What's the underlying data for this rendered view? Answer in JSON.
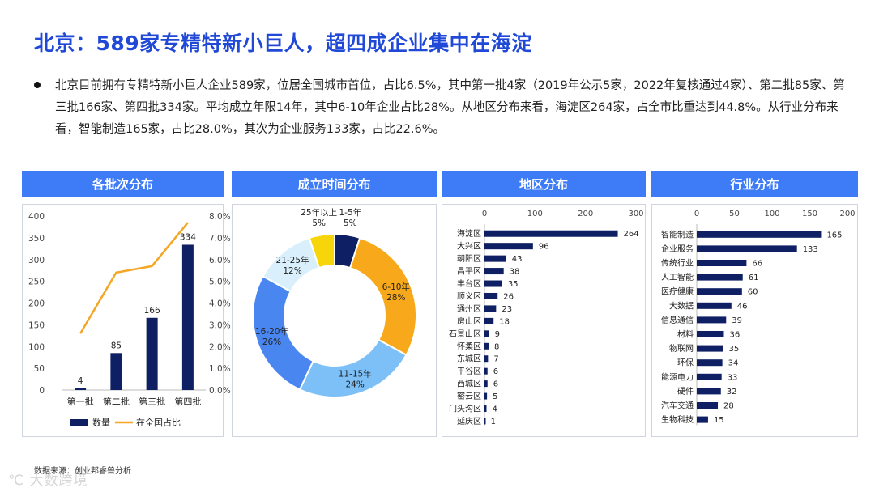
{
  "title": "北京：589家专精特新小巨人，超四成企业集中在海淀",
  "bullet": "北京目前拥有专精特新小巨人企业589家，位居全国城市首位，占比6.5%，其中第一批4家（2019年公示5家，2022年复核通过4家）、第二批85家、第三批166家、第四批334家。平均成立年限14年，其中6-10年企业占比28%。从地区分布来看，海淀区264家，占全市比重达到44.8%。从行业分布来看，智能制造165家，占比28.0%，其次为企业服务133家，占比22.6%。",
  "panels": {
    "batch": "各批次分布",
    "age": "成立时间分布",
    "region": "地区分布",
    "industry": "行业分布"
  },
  "source": "数据来源：创业邦睿兽分析",
  "watermark": "大数跨境",
  "colors": {
    "title": "#1f49d6",
    "header": "#3e7bf7",
    "navy": "#0e1f63",
    "line": "#f5a623"
  },
  "chart_data": [
    {
      "type": "bar",
      "categories": [
        "第一批",
        "第二批",
        "第三批",
        "第四批"
      ],
      "series": [
        {
          "name": "数量",
          "values": [
            4,
            85,
            166,
            334
          ]
        },
        {
          "name": "在全国占比",
          "type": "line",
          "values": [
            0.026,
            0.054,
            0.057,
            0.077
          ]
        }
      ],
      "ylim": [
        0,
        400
      ],
      "yticks": [
        "0",
        "50",
        "100",
        "150",
        "200",
        "250",
        "300",
        "350",
        "400"
      ],
      "y2lim": [
        0,
        0.08
      ],
      "y2ticks": [
        "0.0%",
        "1.0%",
        "2.0%",
        "3.0%",
        "4.0%",
        "5.0%",
        "6.0%",
        "7.0%",
        "8.0%"
      ],
      "legend": "bottom"
    },
    {
      "type": "pie",
      "donut": true,
      "slices": [
        {
          "label": "1-5年",
          "pct": "5%",
          "value": 5,
          "color": "#0e1f63"
        },
        {
          "label": "6-10年",
          "pct": "28%",
          "value": 28,
          "color": "#f7a81b"
        },
        {
          "label": "11-15年",
          "pct": "24%",
          "value": 24,
          "color": "#7cc0f7"
        },
        {
          "label": "16-20年",
          "pct": "26%",
          "value": 26,
          "color": "#4a86f0"
        },
        {
          "label": "21-25年",
          "pct": "12%",
          "value": 12,
          "color": "#d9f0fc"
        },
        {
          "label": "25年以上",
          "pct": "5%",
          "value": 5,
          "color": "#f6d60a"
        }
      ]
    },
    {
      "type": "bar",
      "orientation": "horizontal",
      "categories": [
        "海淀区",
        "大兴区",
        "朝阳区",
        "昌平区",
        "丰台区",
        "顺义区",
        "通州区",
        "房山区",
        "石景山区",
        "怀柔区",
        "东城区",
        "平谷区",
        "西城区",
        "密云区",
        "门头沟区",
        "延庆区"
      ],
      "values": [
        264,
        96,
        43,
        38,
        35,
        26,
        23,
        18,
        9,
        8,
        7,
        6,
        6,
        5,
        4,
        1
      ],
      "xlim": [
        0,
        300
      ],
      "xticks": [
        "0",
        "100",
        "200",
        "300"
      ]
    },
    {
      "type": "bar",
      "orientation": "horizontal",
      "categories": [
        "智能制造",
        "企业服务",
        "传统行业",
        "人工智能",
        "医疗健康",
        "大数据",
        "信息通信",
        "材料",
        "物联网",
        "环保",
        "能源电力",
        "硬件",
        "汽车交通",
        "生物科技"
      ],
      "values": [
        165,
        133,
        66,
        61,
        60,
        46,
        39,
        36,
        35,
        34,
        33,
        32,
        28,
        15
      ],
      "xlim": [
        0,
        200
      ],
      "xticks": [
        "0",
        "50",
        "100",
        "150",
        "200"
      ]
    }
  ]
}
